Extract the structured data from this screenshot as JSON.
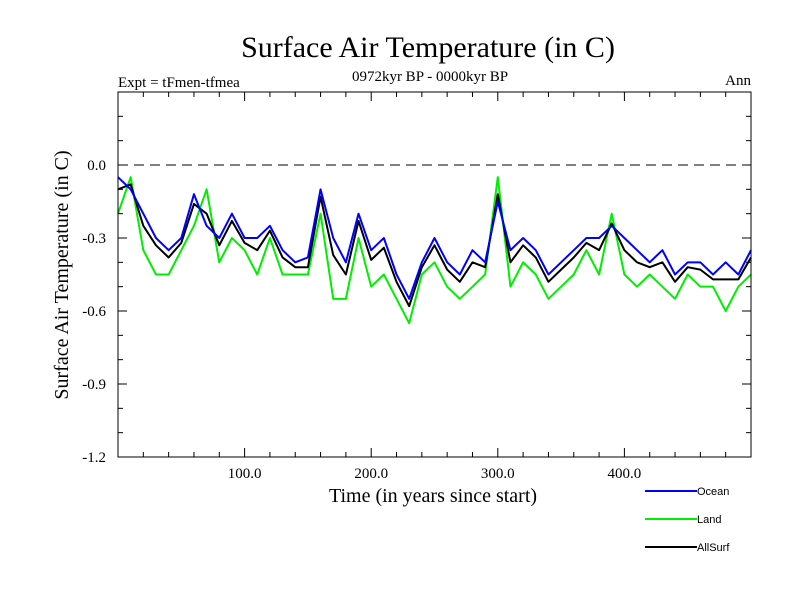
{
  "chart_data": {
    "type": "line",
    "title": "Surface Air Temperature (in C)",
    "subtitle_left": "Expt = tFmen-tfmea",
    "subtitle_center": "0972kyr BP - 0000kyr BP",
    "subtitle_right": "Ann",
    "xlabel": "Time (in years since start)",
    "ylabel": "Surface Air Temperature (in C)",
    "xlim": [
      0,
      500
    ],
    "ylim": [
      -1.2,
      0.3
    ],
    "xticks": [
      100,
      200,
      300,
      400
    ],
    "xtick_labels": [
      "100.0",
      "200.0",
      "300.0",
      "400.0"
    ],
    "yticks": [
      0.0,
      -0.3,
      -0.6,
      -0.9,
      -1.2
    ],
    "ytick_labels": [
      "0.0",
      "-0.3",
      "-0.6",
      "-0.9",
      "-1.2"
    ],
    "reference_line": 0.0,
    "x": [
      0,
      10,
      20,
      30,
      40,
      50,
      60,
      70,
      80,
      90,
      100,
      110,
      120,
      130,
      140,
      150,
      160,
      170,
      180,
      190,
      200,
      210,
      220,
      230,
      240,
      250,
      260,
      270,
      280,
      290,
      300,
      310,
      320,
      330,
      340,
      350,
      360,
      370,
      380,
      390,
      400,
      410,
      420,
      430,
      440,
      450,
      460,
      470,
      480,
      490,
      500
    ],
    "series": [
      {
        "name": "Ocean",
        "color": "#0000ff",
        "values": [
          -0.05,
          -0.1,
          -0.2,
          -0.3,
          -0.35,
          -0.3,
          -0.12,
          -0.25,
          -0.3,
          -0.2,
          -0.3,
          -0.3,
          -0.25,
          -0.35,
          -0.4,
          -0.38,
          -0.1,
          -0.3,
          -0.4,
          -0.2,
          -0.35,
          -0.3,
          -0.45,
          -0.55,
          -0.4,
          -0.3,
          -0.4,
          -0.45,
          -0.35,
          -0.4,
          -0.15,
          -0.35,
          -0.3,
          -0.35,
          -0.45,
          -0.4,
          -0.35,
          -0.3,
          -0.3,
          -0.25,
          -0.3,
          -0.35,
          -0.4,
          -0.35,
          -0.45,
          -0.4,
          -0.4,
          -0.45,
          -0.4,
          -0.45,
          -0.35
        ]
      },
      {
        "name": "Land",
        "color": "#00ee00",
        "values": [
          -0.2,
          -0.05,
          -0.35,
          -0.45,
          -0.45,
          -0.35,
          -0.25,
          -0.1,
          -0.4,
          -0.3,
          -0.35,
          -0.45,
          -0.3,
          -0.45,
          -0.45,
          -0.45,
          -0.2,
          -0.55,
          -0.55,
          -0.3,
          -0.5,
          -0.45,
          -0.55,
          -0.65,
          -0.45,
          -0.4,
          -0.5,
          -0.55,
          -0.5,
          -0.45,
          -0.05,
          -0.5,
          -0.4,
          -0.45,
          -0.55,
          -0.5,
          -0.45,
          -0.35,
          -0.45,
          -0.2,
          -0.45,
          -0.5,
          -0.45,
          -0.5,
          -0.55,
          -0.45,
          -0.5,
          -0.5,
          -0.6,
          -0.5,
          -0.45
        ]
      },
      {
        "name": "AllSurf",
        "color": "#000000",
        "values": [
          -0.1,
          -0.08,
          -0.25,
          -0.33,
          -0.38,
          -0.32,
          -0.16,
          -0.2,
          -0.33,
          -0.23,
          -0.32,
          -0.35,
          -0.27,
          -0.38,
          -0.42,
          -0.42,
          -0.13,
          -0.37,
          -0.45,
          -0.23,
          -0.39,
          -0.34,
          -0.48,
          -0.58,
          -0.42,
          -0.33,
          -0.43,
          -0.48,
          -0.4,
          -0.42,
          -0.12,
          -0.4,
          -0.33,
          -0.38,
          -0.48,
          -0.43,
          -0.38,
          -0.32,
          -0.35,
          -0.24,
          -0.35,
          -0.4,
          -0.42,
          -0.4,
          -0.48,
          -0.42,
          -0.43,
          -0.47,
          -0.47,
          -0.47,
          -0.38
        ]
      }
    ]
  }
}
